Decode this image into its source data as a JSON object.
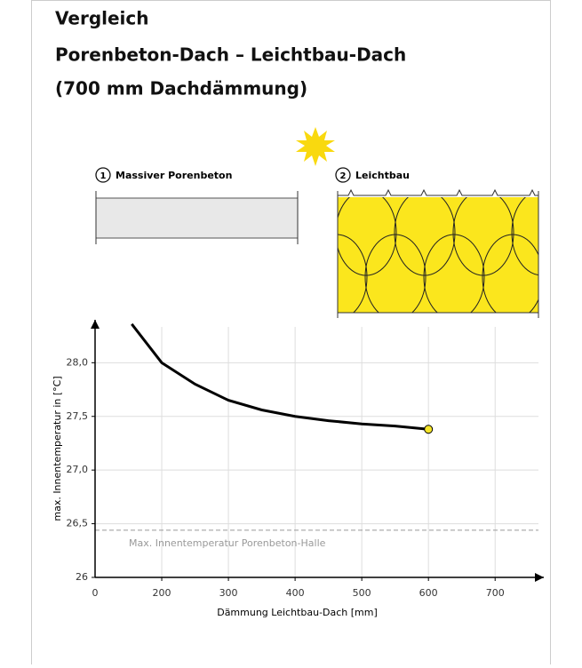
{
  "title_lines": [
    "Vergleich",
    "Porenbeton-Dach – Leichtbau-Dach",
    "(700 mm Dachdämmung)"
  ],
  "illustration": {
    "labels": [
      {
        "number": "1",
        "text": "Massiver Porenbeton"
      },
      {
        "number": "2",
        "text": "Leichtbau"
      }
    ]
  },
  "chart_data": {
    "type": "line",
    "x": [
      155,
      200,
      250,
      300,
      350,
      400,
      450,
      500,
      550,
      600
    ],
    "series": [
      {
        "color": "#000000",
        "end_marker_color": "#f5e52a",
        "values": [
          28.36,
          28.0,
          27.8,
          27.65,
          27.56,
          27.5,
          27.46,
          27.43,
          27.41,
          27.38
        ]
      }
    ],
    "xlim": [
      100,
      773
    ],
    "xticks": [
      200,
      300,
      400,
      500,
      600,
      700
    ],
    "x_origin_label": "0",
    "ylim": [
      26,
      28.4
    ],
    "yticks": [
      26,
      {
        "value": 26.5,
        "label": "26,5"
      },
      {
        "value": 27,
        "label": "27,0"
      },
      {
        "value": 27.5,
        "label": "27,5"
      },
      {
        "value": 28,
        "label": "28,0"
      }
    ],
    "xlabel": "Dämmung Leichtbau-Dach [mm]",
    "ylabel": "max. Innentemperatur in [°C]",
    "reference_line": {
      "value": 26.44,
      "label": "Max. Innentemperatur Porenbeton-Halle",
      "color": "#999999"
    },
    "grid": true
  }
}
